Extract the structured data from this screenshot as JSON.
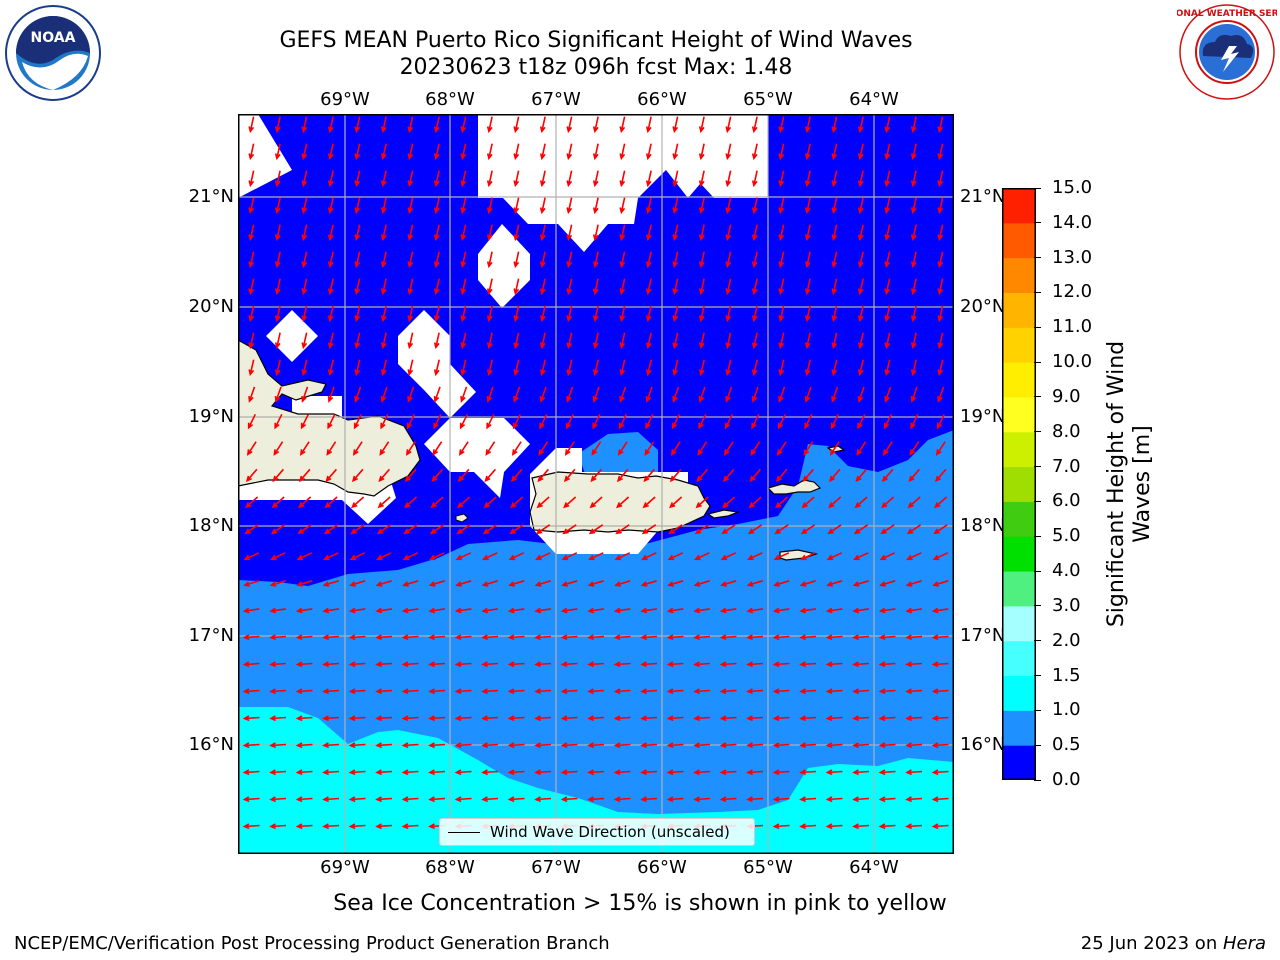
{
  "title": {
    "line1": "GEFS MEAN Puerto Rico Significant Height of Wind Waves",
    "line2": "20230623 t18z 096h fcst   Max: 1.48"
  },
  "logos": {
    "noaa_text": "NOAA",
    "nws_ring_text": "NATIONAL WEATHER SERVICE"
  },
  "map": {
    "lon_labels": [
      "69°W",
      "68°W",
      "67°W",
      "66°W",
      "65°W",
      "64°W"
    ],
    "lat_labels": [
      "21°N",
      "20°N",
      "19°N",
      "18°N",
      "17°N",
      "16°N"
    ],
    "colors": {
      "band_0_0_5": "#0000ff",
      "band_0_5_1_0": "#1e90ff",
      "band_1_0_1_5": "#00ffff",
      "land": "#eeeedd",
      "masked": "#ffffff",
      "arrow": "#ff0000",
      "grid": "#b0b0b0"
    }
  },
  "legend": {
    "label": "Wind Wave Direction (unscaled)"
  },
  "colorbar": {
    "ticks": [
      "0.0",
      "0.5",
      "1.0",
      "1.5",
      "2.0",
      "3.0",
      "4.0",
      "5.0",
      "6.0",
      "7.0",
      "8.0",
      "9.0",
      "10.0",
      "11.0",
      "12.0",
      "13.0",
      "14.0",
      "15.0"
    ],
    "colors": [
      "#0000ff",
      "#1e90ff",
      "#00ffff",
      "#46ffff",
      "#a6ffff",
      "#50f080",
      "#00e000",
      "#40cc10",
      "#a0dd00",
      "#ccf000",
      "#ffff20",
      "#ffee00",
      "#ffd200",
      "#ffb400",
      "#ff8800",
      "#ff5a00",
      "#ff2000"
    ],
    "label": "Significant Height of Wind Waves [m]"
  },
  "subtitle": "Sea Ice Concentration > 15% is shown in pink to yellow",
  "footer": {
    "left": "NCEP/EMC/Verification Post Processing Product Generation Branch",
    "right_date": "25 Jun 2023 on ",
    "right_host": "Hera"
  }
}
